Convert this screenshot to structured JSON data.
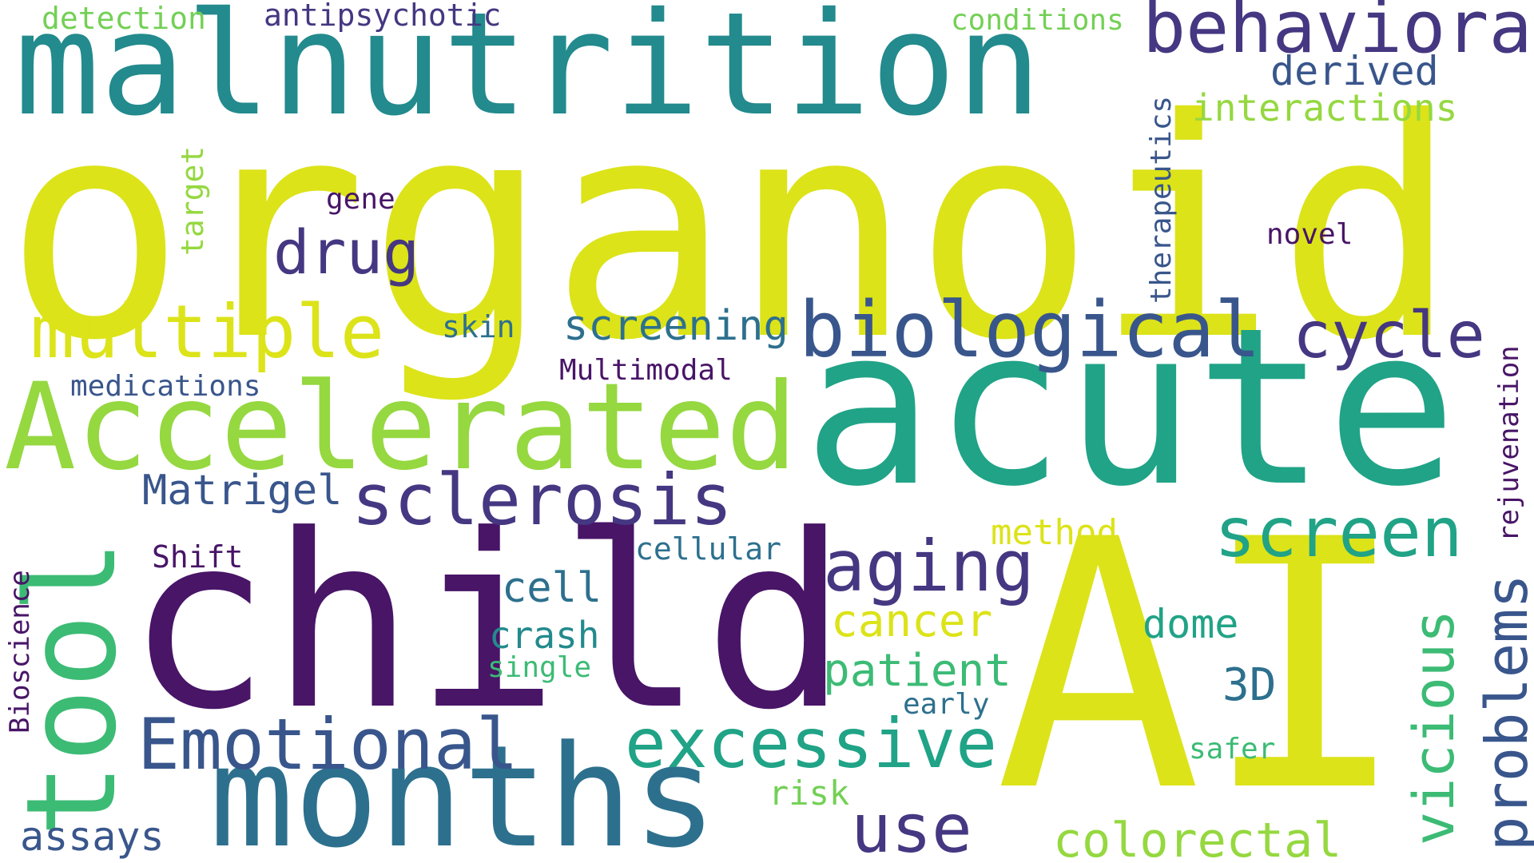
{
  "palette": {
    "dark_purple": "#481567",
    "indigo": "#453781",
    "slate_blue": "#39568c",
    "steel_blue": "#2d708e",
    "teal": "#238a8d",
    "sea_green": "#20a386",
    "green": "#3cbb75",
    "light_green": "#73d055",
    "lime": "#95d840",
    "yellow": "#dce319"
  },
  "words": {
    "organoid": {
      "text": "organoid",
      "color": "#dce319"
    },
    "malnutrition": {
      "text": "malnutrition",
      "color": "#238a8d"
    },
    "acute": {
      "text": "acute",
      "color": "#20a386"
    },
    "child": {
      "text": "child",
      "color": "#481567"
    },
    "ai": {
      "text": "AI",
      "color": "#dce319"
    },
    "months": {
      "text": "months",
      "color": "#2d708e"
    },
    "accelerated": {
      "text": "Accelerated",
      "color": "#95d840"
    },
    "tool": {
      "text": "tool",
      "color": "#3cbb75"
    },
    "biological": {
      "text": "biological",
      "color": "#39568c"
    },
    "behavioral": {
      "text": "behavioral",
      "color": "#453781"
    },
    "multiple": {
      "text": "multiple",
      "color": "#dce319"
    },
    "sclerosis": {
      "text": "sclerosis",
      "color": "#453781"
    },
    "emotional": {
      "text": "Emotional",
      "color": "#39568c"
    },
    "excessive": {
      "text": "excessive",
      "color": "#20a386"
    },
    "aging": {
      "text": "aging",
      "color": "#453781"
    },
    "screen": {
      "text": "screen",
      "color": "#20a386"
    },
    "cycle": {
      "text": "cycle",
      "color": "#453781"
    },
    "drug": {
      "text": "drug",
      "color": "#453781"
    },
    "use": {
      "text": "use",
      "color": "#453781"
    },
    "vicious": {
      "text": "vicious",
      "color": "#3cbb75"
    },
    "problems": {
      "text": "problems",
      "color": "#39568c"
    },
    "colorectal": {
      "text": "colorectal",
      "color": "#95d840"
    },
    "screening": {
      "text": "screening",
      "color": "#2d708e"
    },
    "cancer": {
      "text": "cancer",
      "color": "#dce319"
    },
    "patient": {
      "text": "patient",
      "color": "#3cbb75"
    },
    "matrigel": {
      "text": "Matrigel",
      "color": "#39568c"
    },
    "derived": {
      "text": "derived",
      "color": "#39568c"
    },
    "interactions": {
      "text": "interactions",
      "color": "#95d840"
    },
    "cell": {
      "text": "cell",
      "color": "#2d708e"
    },
    "crash": {
      "text": "crash",
      "color": "#238a8d"
    },
    "three_d": {
      "text": "3D",
      "color": "#2d708e"
    },
    "dome": {
      "text": "dome",
      "color": "#20a386"
    },
    "assays": {
      "text": "assays",
      "color": "#39568c"
    },
    "method": {
      "text": "method",
      "color": "#dce319"
    },
    "medications": {
      "text": "medications",
      "color": "#39568c"
    },
    "detection": {
      "text": "detection",
      "color": "#73d055"
    },
    "antipsychotic": {
      "text": "antipsychotic",
      "color": "#453781"
    },
    "conditions": {
      "text": "conditions",
      "color": "#73d055"
    },
    "target": {
      "text": "target",
      "color": "#95d840"
    },
    "gene": {
      "text": "gene",
      "color": "#481567"
    },
    "therapeutics": {
      "text": "therapeutics",
      "color": "#39568c"
    },
    "novel": {
      "text": "novel",
      "color": "#481567"
    },
    "skin": {
      "text": "skin",
      "color": "#2d708e"
    },
    "multimodal": {
      "text": "Multimodal",
      "color": "#481567"
    },
    "rejuvenation": {
      "text": "rejuvenation",
      "color": "#481567"
    },
    "shift": {
      "text": "Shift",
      "color": "#481567"
    },
    "cellular": {
      "text": "cellular",
      "color": "#2d708e"
    },
    "bioscience": {
      "text": "Bioscience",
      "color": "#481567"
    },
    "single": {
      "text": "single",
      "color": "#3cbb75"
    },
    "early": {
      "text": "early",
      "color": "#2d708e"
    },
    "safer": {
      "text": "safer",
      "color": "#3cbb75"
    },
    "risk": {
      "text": "risk",
      "color": "#73d055"
    }
  }
}
